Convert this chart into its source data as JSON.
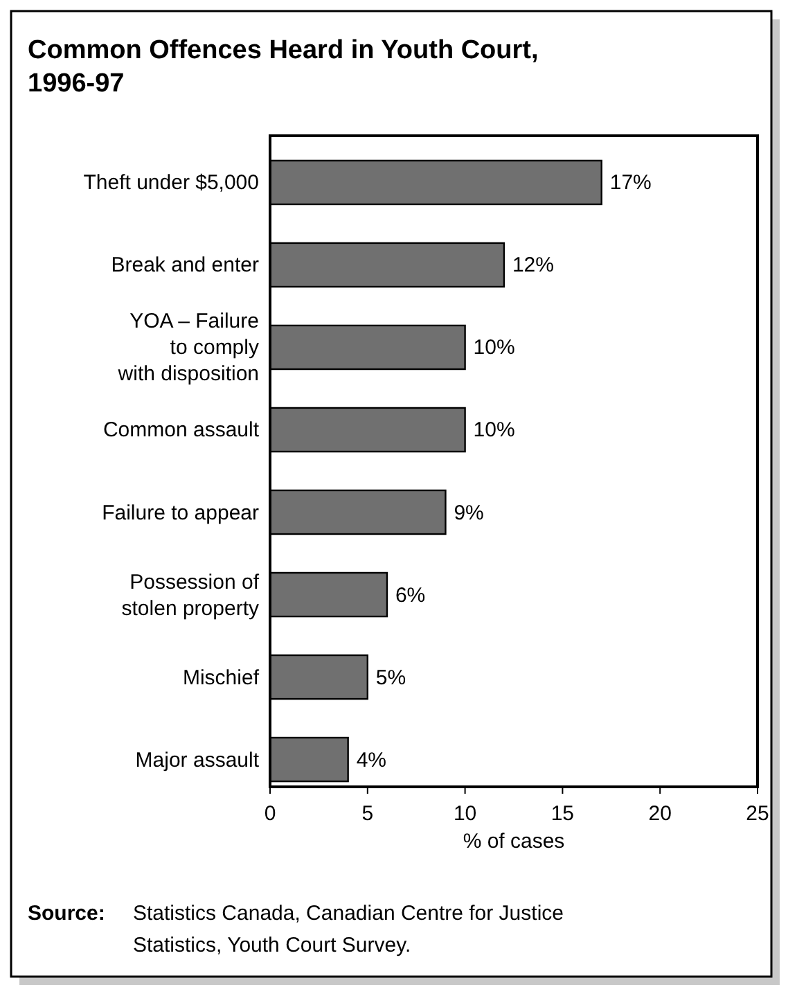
{
  "chart_data": {
    "type": "bar",
    "orientation": "horizontal",
    "title": "Common Offences Heard in Youth Court, 1996-97",
    "xlabel": "% of cases",
    "categories": [
      "Theft under $5,000",
      "Break and enter",
      "YOA – Failure\nto comply\nwith disposition",
      "Common assault",
      "Failure to appear",
      "Possession of\nstolen property",
      "Mischief",
      "Major assault"
    ],
    "values": [
      17,
      12,
      10,
      10,
      9,
      6,
      5,
      4
    ],
    "value_labels": [
      "17%",
      "12%",
      "10%",
      "10%",
      "9%",
      "6%",
      "5%",
      "4%"
    ],
    "color": "#707070",
    "xlim": [
      0,
      25
    ],
    "xticks": [
      0,
      5,
      10,
      15,
      20,
      25
    ],
    "grid": false,
    "annotations": [
      "Source: Statistics Canada, Canadian Centre for Justice Statistics, Youth Court Survey."
    ]
  }
}
